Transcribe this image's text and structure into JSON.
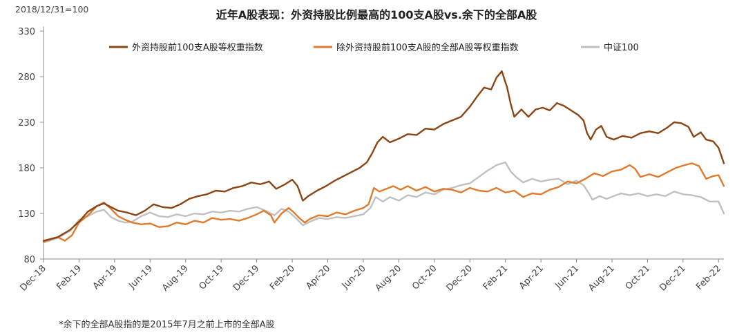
{
  "chart_data": {
    "type": "line",
    "title": "近年A股表现：外资持股比例最高的100支A股vs.余下的全部A股",
    "subtitle": "2018/12/31=100",
    "footnote": "*余下的全部A股指的是2015年7月之前上市的全部A股",
    "xlabel": "",
    "ylabel": "",
    "ylim": [
      80,
      335
    ],
    "y_ticks": [
      80,
      130,
      180,
      230,
      280,
      330
    ],
    "x_range": [
      0,
      38.3
    ],
    "x_ticks": [
      {
        "x": 0,
        "label": "Dec-18"
      },
      {
        "x": 2,
        "label": "Feb-19"
      },
      {
        "x": 4,
        "label": "Apr-19"
      },
      {
        "x": 6,
        "label": "Jun-19"
      },
      {
        "x": 8,
        "label": "Aug-19"
      },
      {
        "x": 10,
        "label": "Oct-19"
      },
      {
        "x": 12,
        "label": "Dec-19"
      },
      {
        "x": 14,
        "label": "Feb-20"
      },
      {
        "x": 16,
        "label": "Apr-20"
      },
      {
        "x": 18,
        "label": "Jun-20"
      },
      {
        "x": 20,
        "label": "Aug-20"
      },
      {
        "x": 22,
        "label": "Oct-20"
      },
      {
        "x": 24,
        "label": "Dec-20"
      },
      {
        "x": 26,
        "label": "Feb-21"
      },
      {
        "x": 28,
        "label": "Apr-21"
      },
      {
        "x": 30,
        "label": "Jun-21"
      },
      {
        "x": 32,
        "label": "Aug-21"
      },
      {
        "x": 34,
        "label": "Oct-21"
      },
      {
        "x": 36,
        "label": "Dec-21"
      },
      {
        "x": 38,
        "label": "Feb-22"
      }
    ],
    "grid": false,
    "legend_position": "top",
    "series": [
      {
        "name": "外资持股前100支A股等权重指数",
        "color": "#8B4513",
        "points": [
          [
            0,
            100
          ],
          [
            0.8,
            104
          ],
          [
            1.5,
            112
          ],
          [
            2.0,
            121
          ],
          [
            2.5,
            132
          ],
          [
            3.0,
            138
          ],
          [
            3.4,
            141
          ],
          [
            3.8,
            137
          ],
          [
            4.2,
            133
          ],
          [
            4.7,
            131
          ],
          [
            5.2,
            128
          ],
          [
            5.7,
            133
          ],
          [
            6.2,
            140
          ],
          [
            6.7,
            137
          ],
          [
            7.2,
            136
          ],
          [
            7.7,
            140
          ],
          [
            8.2,
            146
          ],
          [
            8.7,
            149
          ],
          [
            9.2,
            151
          ],
          [
            9.7,
            155
          ],
          [
            10.2,
            154
          ],
          [
            10.7,
            158
          ],
          [
            11.2,
            160
          ],
          [
            11.7,
            164
          ],
          [
            12.2,
            162
          ],
          [
            12.7,
            165
          ],
          [
            13.1,
            157
          ],
          [
            13.6,
            162
          ],
          [
            14.0,
            167
          ],
          [
            14.3,
            160
          ],
          [
            14.6,
            144
          ],
          [
            14.9,
            149
          ],
          [
            15.4,
            155
          ],
          [
            15.9,
            160
          ],
          [
            16.4,
            166
          ],
          [
            16.9,
            171
          ],
          [
            17.4,
            176
          ],
          [
            17.8,
            180
          ],
          [
            18.2,
            186
          ],
          [
            18.5,
            196
          ],
          [
            18.8,
            208
          ],
          [
            19.1,
            214
          ],
          [
            19.5,
            208
          ],
          [
            20.0,
            212
          ],
          [
            20.5,
            217
          ],
          [
            21.0,
            216
          ],
          [
            21.5,
            223
          ],
          [
            22.0,
            222
          ],
          [
            22.5,
            228
          ],
          [
            23.0,
            232
          ],
          [
            23.5,
            236
          ],
          [
            24.0,
            247
          ],
          [
            24.4,
            258
          ],
          [
            24.8,
            268
          ],
          [
            25.2,
            266
          ],
          [
            25.5,
            279
          ],
          [
            25.8,
            286
          ],
          [
            26.1,
            268
          ],
          [
            26.3,
            250
          ],
          [
            26.5,
            236
          ],
          [
            26.9,
            244
          ],
          [
            27.3,
            236
          ],
          [
            27.7,
            244
          ],
          [
            28.1,
            246
          ],
          [
            28.5,
            243
          ],
          [
            28.9,
            251
          ],
          [
            29.3,
            248
          ],
          [
            29.7,
            243
          ],
          [
            30.1,
            238
          ],
          [
            30.4,
            232
          ],
          [
            30.6,
            218
          ],
          [
            30.8,
            211
          ],
          [
            31.1,
            222
          ],
          [
            31.4,
            226
          ],
          [
            31.7,
            214
          ],
          [
            32.1,
            211
          ],
          [
            32.6,
            215
          ],
          [
            33.1,
            213
          ],
          [
            33.6,
            218
          ],
          [
            34.1,
            220
          ],
          [
            34.6,
            218
          ],
          [
            35.1,
            224
          ],
          [
            35.5,
            230
          ],
          [
            35.9,
            229
          ],
          [
            36.3,
            225
          ],
          [
            36.6,
            214
          ],
          [
            37.0,
            219
          ],
          [
            37.3,
            211
          ],
          [
            37.7,
            209
          ],
          [
            38.0,
            202
          ],
          [
            38.3,
            185
          ]
        ]
      },
      {
        "name": "除外资持股前100支A股的全部A股等权重指数",
        "color": "#E07A2C",
        "points": [
          [
            0,
            99
          ],
          [
            0.8,
            104
          ],
          [
            1.2,
            100
          ],
          [
            1.6,
            106
          ],
          [
            2.0,
            120
          ],
          [
            2.5,
            128
          ],
          [
            3.0,
            138
          ],
          [
            3.4,
            142
          ],
          [
            3.8,
            135
          ],
          [
            4.2,
            127
          ],
          [
            4.6,
            123
          ],
          [
            5.0,
            120
          ],
          [
            5.5,
            118
          ],
          [
            6.0,
            119
          ],
          [
            6.5,
            115
          ],
          [
            7.0,
            116
          ],
          [
            7.5,
            120
          ],
          [
            8.0,
            118
          ],
          [
            8.5,
            122
          ],
          [
            9.0,
            120
          ],
          [
            9.5,
            125
          ],
          [
            10.0,
            123
          ],
          [
            10.5,
            124
          ],
          [
            11.0,
            122
          ],
          [
            11.5,
            125
          ],
          [
            12.0,
            129
          ],
          [
            12.4,
            133
          ],
          [
            12.8,
            128
          ],
          [
            13.0,
            120
          ],
          [
            13.4,
            130
          ],
          [
            13.8,
            136
          ],
          [
            14.1,
            131
          ],
          [
            14.4,
            125
          ],
          [
            14.7,
            120
          ],
          [
            15.0,
            124
          ],
          [
            15.5,
            128
          ],
          [
            16.0,
            127
          ],
          [
            16.5,
            131
          ],
          [
            17.0,
            129
          ],
          [
            17.5,
            133
          ],
          [
            18.0,
            136
          ],
          [
            18.3,
            140
          ],
          [
            18.6,
            158
          ],
          [
            18.9,
            154
          ],
          [
            19.3,
            157
          ],
          [
            19.7,
            160
          ],
          [
            20.1,
            156
          ],
          [
            20.5,
            160
          ],
          [
            21.0,
            155
          ],
          [
            21.5,
            159
          ],
          [
            22.0,
            154
          ],
          [
            22.5,
            157
          ],
          [
            23.0,
            156
          ],
          [
            23.5,
            153
          ],
          [
            24.0,
            158
          ],
          [
            24.5,
            155
          ],
          [
            25.0,
            154
          ],
          [
            25.5,
            158
          ],
          [
            26.0,
            153
          ],
          [
            26.5,
            155
          ],
          [
            27.0,
            148
          ],
          [
            27.5,
            152
          ],
          [
            28.0,
            151
          ],
          [
            28.5,
            156
          ],
          [
            29.0,
            159
          ],
          [
            29.5,
            165
          ],
          [
            30.0,
            163
          ],
          [
            30.5,
            168
          ],
          [
            31.0,
            174
          ],
          [
            31.5,
            171
          ],
          [
            32.0,
            176
          ],
          [
            32.5,
            178
          ],
          [
            33.0,
            183
          ],
          [
            33.3,
            179
          ],
          [
            33.6,
            170
          ],
          [
            34.1,
            173
          ],
          [
            34.6,
            170
          ],
          [
            35.1,
            175
          ],
          [
            35.6,
            180
          ],
          [
            36.1,
            183
          ],
          [
            36.5,
            185
          ],
          [
            36.9,
            182
          ],
          [
            37.3,
            168
          ],
          [
            37.7,
            171
          ],
          [
            38.0,
            172
          ],
          [
            38.3,
            160
          ]
        ]
      },
      {
        "name": "中证100",
        "color": "#C0C0C0",
        "points": [
          [
            0,
            98
          ],
          [
            0.8,
            103
          ],
          [
            1.5,
            111
          ],
          [
            2.0,
            123
          ],
          [
            2.5,
            127
          ],
          [
            3.0,
            132
          ],
          [
            3.4,
            134
          ],
          [
            3.8,
            126
          ],
          [
            4.2,
            122
          ],
          [
            4.6,
            120
          ],
          [
            5.0,
            121
          ],
          [
            5.5,
            127
          ],
          [
            6.0,
            131
          ],
          [
            6.5,
            127
          ],
          [
            7.0,
            126
          ],
          [
            7.5,
            129
          ],
          [
            8.0,
            127
          ],
          [
            8.5,
            130
          ],
          [
            9.0,
            129
          ],
          [
            9.5,
            132
          ],
          [
            10.0,
            131
          ],
          [
            10.5,
            133
          ],
          [
            11.0,
            132
          ],
          [
            11.5,
            135
          ],
          [
            12.0,
            137
          ],
          [
            12.5,
            133
          ],
          [
            13.0,
            128
          ],
          [
            13.4,
            135
          ],
          [
            13.8,
            132
          ],
          [
            14.2,
            125
          ],
          [
            14.6,
            117
          ],
          [
            15.0,
            121
          ],
          [
            15.5,
            125
          ],
          [
            16.0,
            124
          ],
          [
            16.5,
            126
          ],
          [
            17.0,
            125
          ],
          [
            17.5,
            127
          ],
          [
            18.0,
            129
          ],
          [
            18.4,
            136
          ],
          [
            18.7,
            148
          ],
          [
            19.1,
            143
          ],
          [
            19.5,
            148
          ],
          [
            20.0,
            144
          ],
          [
            20.5,
            150
          ],
          [
            21.0,
            148
          ],
          [
            21.5,
            153
          ],
          [
            22.0,
            151
          ],
          [
            22.5,
            156
          ],
          [
            23.0,
            158
          ],
          [
            23.5,
            161
          ],
          [
            24.0,
            163
          ],
          [
            24.5,
            170
          ],
          [
            25.0,
            177
          ],
          [
            25.5,
            183
          ],
          [
            26.0,
            186
          ],
          [
            26.3,
            176
          ],
          [
            26.6,
            170
          ],
          [
            27.0,
            164
          ],
          [
            27.5,
            168
          ],
          [
            28.0,
            165
          ],
          [
            28.5,
            167
          ],
          [
            29.0,
            168
          ],
          [
            29.5,
            162
          ],
          [
            30.0,
            166
          ],
          [
            30.4,
            161
          ],
          [
            30.7,
            152
          ],
          [
            30.9,
            145
          ],
          [
            31.3,
            149
          ],
          [
            31.7,
            146
          ],
          [
            32.1,
            149
          ],
          [
            32.5,
            152
          ],
          [
            33.0,
            150
          ],
          [
            33.5,
            152
          ],
          [
            34.0,
            149
          ],
          [
            34.5,
            151
          ],
          [
            35.0,
            149
          ],
          [
            35.5,
            154
          ],
          [
            36.0,
            151
          ],
          [
            36.5,
            150
          ],
          [
            37.0,
            148
          ],
          [
            37.5,
            143
          ],
          [
            38.0,
            143
          ],
          [
            38.3,
            130
          ]
        ]
      }
    ]
  }
}
